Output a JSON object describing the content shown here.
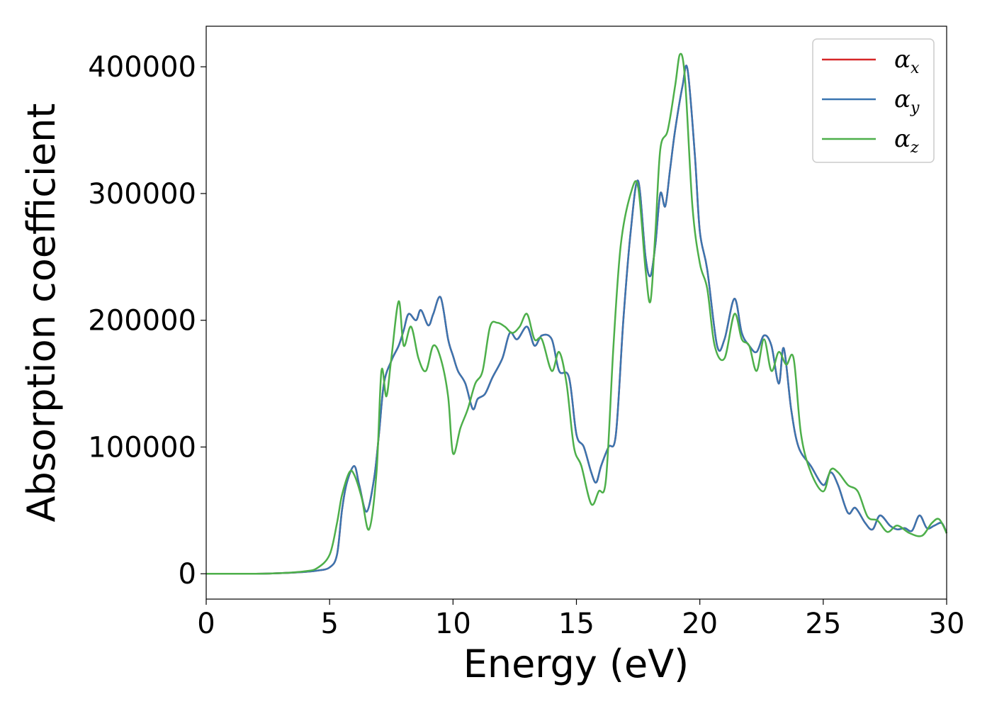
{
  "chart_data": {
    "type": "line",
    "title": "",
    "xlabel": "Energy (eV)",
    "ylabel": "Absorption coefficient",
    "xlim": [
      0,
      30
    ],
    "ylim": [
      -20000,
      432000
    ],
    "xticks": [
      0,
      5,
      10,
      15,
      20,
      25,
      30
    ],
    "yticks": [
      0,
      100000,
      200000,
      300000,
      400000
    ],
    "grid": false,
    "legend_position": "top-right",
    "series": [
      {
        "name": "α_x",
        "name_base": "α",
        "name_sub": "x",
        "color": "#d62728",
        "x": [
          0,
          1,
          2,
          3,
          4,
          4.5,
          5,
          5.3,
          5.5,
          5.7,
          6,
          6.2,
          6.5,
          6.8,
          7,
          7.2,
          7.5,
          7.8,
          8,
          8.2,
          8.5,
          8.7,
          9,
          9.2,
          9.5,
          9.8,
          10,
          10.2,
          10.5,
          10.8,
          11,
          11.3,
          11.6,
          12,
          12.3,
          12.6,
          13,
          13.3,
          13.6,
          14,
          14.3,
          14.7,
          15,
          15.3,
          15.6,
          15.8,
          16,
          16.3,
          16.6,
          16.9,
          17.2,
          17.5,
          17.8,
          18,
          18.2,
          18.4,
          18.6,
          18.8,
          19,
          19.3,
          19.5,
          19.8,
          20,
          20.3,
          20.7,
          21,
          21.4,
          21.7,
          22,
          22.3,
          22.6,
          22.9,
          23.2,
          23.4,
          23.7,
          24,
          24.5,
          25,
          25.3,
          25.6,
          26,
          26.3,
          26.7,
          27,
          27.3,
          27.7,
          28,
          28.3,
          28.6,
          28.9,
          29.2,
          29.5,
          29.8,
          30
        ],
        "y": [
          0,
          0,
          0,
          500,
          1500,
          2500,
          5000,
          15000,
          50000,
          72000,
          85000,
          70000,
          49000,
          75000,
          110000,
          150000,
          168000,
          180000,
          192000,
          205000,
          200000,
          208000,
          196000,
          205000,
          218000,
          185000,
          172000,
          160000,
          150000,
          130000,
          138000,
          142000,
          155000,
          170000,
          190000,
          185000,
          195000,
          180000,
          188000,
          185000,
          160000,
          155000,
          110000,
          100000,
          80000,
          72000,
          85000,
          100000,
          110000,
          200000,
          270000,
          310000,
          250000,
          235000,
          260000,
          300000,
          290000,
          320000,
          350000,
          385000,
          398000,
          330000,
          270000,
          240000,
          180000,
          185000,
          217000,
          190000,
          180000,
          175000,
          188000,
          180000,
          150000,
          178000,
          130000,
          100000,
          85000,
          70000,
          80000,
          70000,
          48000,
          52000,
          40000,
          35000,
          46000,
          38000,
          35000,
          36000,
          34000,
          46000,
          36000,
          38000,
          40000,
          32000
        ]
      },
      {
        "name": "α_y",
        "name_base": "α",
        "name_sub": "y",
        "color": "#3a75b0",
        "x": [
          0,
          1,
          2,
          3,
          4,
          4.5,
          5,
          5.3,
          5.5,
          5.7,
          6,
          6.2,
          6.5,
          6.8,
          7,
          7.2,
          7.5,
          7.8,
          8,
          8.2,
          8.5,
          8.7,
          9,
          9.2,
          9.5,
          9.8,
          10,
          10.2,
          10.5,
          10.8,
          11,
          11.3,
          11.6,
          12,
          12.3,
          12.6,
          13,
          13.3,
          13.6,
          14,
          14.3,
          14.7,
          15,
          15.3,
          15.6,
          15.8,
          16,
          16.3,
          16.6,
          16.9,
          17.2,
          17.5,
          17.8,
          18,
          18.2,
          18.4,
          18.6,
          18.8,
          19,
          19.3,
          19.5,
          19.8,
          20,
          20.3,
          20.7,
          21,
          21.4,
          21.7,
          22,
          22.3,
          22.6,
          22.9,
          23.2,
          23.4,
          23.7,
          24,
          24.5,
          25,
          25.3,
          25.6,
          26,
          26.3,
          26.7,
          27,
          27.3,
          27.7,
          28,
          28.3,
          28.6,
          28.9,
          29.2,
          29.5,
          29.8,
          30
        ],
        "y": [
          0,
          0,
          0,
          500,
          1500,
          2500,
          5000,
          15000,
          50000,
          72000,
          85000,
          70000,
          49000,
          75000,
          110000,
          150000,
          168000,
          180000,
          192000,
          205000,
          200000,
          208000,
          196000,
          205000,
          218000,
          185000,
          172000,
          160000,
          150000,
          130000,
          138000,
          142000,
          155000,
          170000,
          190000,
          185000,
          195000,
          180000,
          188000,
          185000,
          160000,
          155000,
          110000,
          100000,
          80000,
          72000,
          85000,
          100000,
          110000,
          200000,
          270000,
          310000,
          250000,
          235000,
          260000,
          300000,
          290000,
          320000,
          350000,
          385000,
          398000,
          330000,
          270000,
          240000,
          180000,
          185000,
          217000,
          190000,
          180000,
          175000,
          188000,
          180000,
          150000,
          178000,
          130000,
          100000,
          85000,
          70000,
          80000,
          70000,
          48000,
          52000,
          40000,
          35000,
          46000,
          38000,
          35000,
          36000,
          34000,
          46000,
          36000,
          38000,
          40000,
          32000
        ]
      },
      {
        "name": "α_z",
        "name_base": "α",
        "name_sub": "z",
        "color": "#4daf4a",
        "x": [
          0,
          1,
          2,
          3,
          4,
          4.5,
          5,
          5.3,
          5.5,
          5.8,
          6,
          6.3,
          6.6,
          6.9,
          7.1,
          7.3,
          7.5,
          7.8,
          8,
          8.3,
          8.6,
          8.9,
          9.2,
          9.5,
          9.8,
          10,
          10.3,
          10.6,
          10.9,
          11.2,
          11.5,
          11.8,
          12.1,
          12.4,
          12.7,
          13,
          13.3,
          13.6,
          14,
          14.3,
          14.6,
          14.9,
          15.2,
          15.6,
          15.9,
          16.2,
          16.5,
          16.8,
          17.2,
          17.5,
          17.8,
          18,
          18.2,
          18.4,
          18.7,
          19,
          19.2,
          19.4,
          19.7,
          20,
          20.3,
          20.6,
          21,
          21.4,
          21.7,
          22,
          22.3,
          22.6,
          22.9,
          23.2,
          23.5,
          23.8,
          24.1,
          24.5,
          25,
          25.3,
          25.6,
          26,
          26.4,
          26.8,
          27.2,
          27.6,
          28,
          28.5,
          29,
          29.4,
          29.7,
          30
        ],
        "y": [
          0,
          0,
          0,
          500,
          2000,
          4500,
          15000,
          40000,
          62000,
          80000,
          78000,
          60000,
          35000,
          80000,
          160000,
          140000,
          170000,
          215000,
          180000,
          195000,
          170000,
          160000,
          180000,
          170000,
          140000,
          95000,
          115000,
          130000,
          150000,
          160000,
          195000,
          198000,
          195000,
          190000,
          195000,
          205000,
          185000,
          185000,
          160000,
          175000,
          150000,
          100000,
          85000,
          55000,
          65000,
          75000,
          180000,
          260000,
          300000,
          305000,
          240000,
          215000,
          270000,
          335000,
          350000,
          385000,
          410000,
          390000,
          290000,
          245000,
          225000,
          180000,
          170000,
          205000,
          185000,
          180000,
          160000,
          185000,
          160000,
          175000,
          165000,
          170000,
          110000,
          80000,
          65000,
          82000,
          80000,
          70000,
          65000,
          45000,
          42000,
          33000,
          38000,
          32000,
          30000,
          40000,
          43000,
          32000
        ]
      }
    ]
  }
}
